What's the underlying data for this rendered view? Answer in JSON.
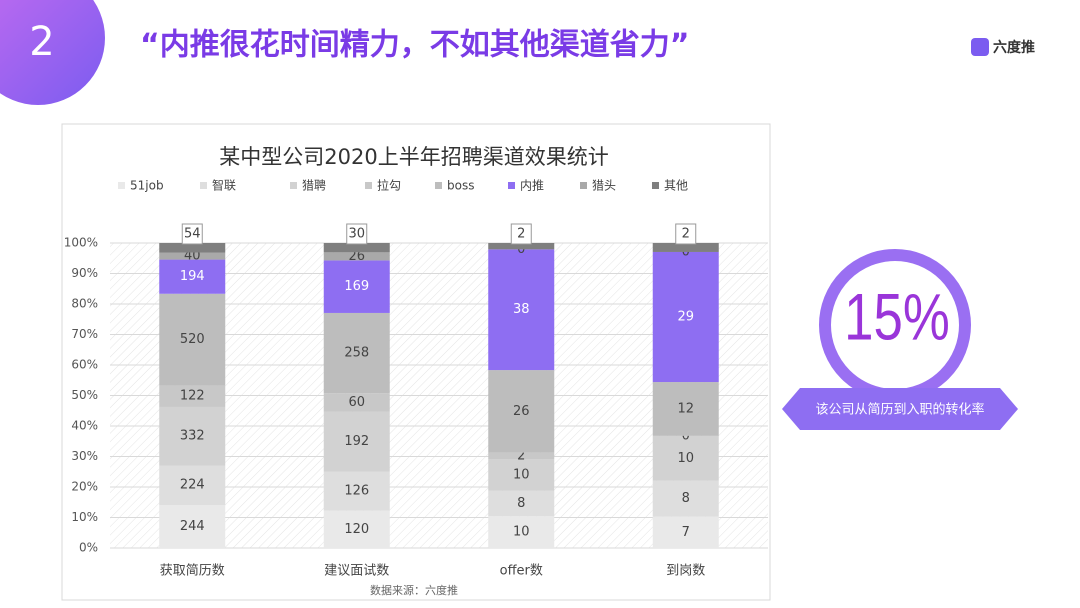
{
  "slide": {
    "badge": "2",
    "heading": "“内推很花时间精力，不如其他渠道省力”",
    "logo": "六度推",
    "source": "数据来源：六度推"
  },
  "callout": {
    "label": "15%",
    "caption": "该公司从简历到入职的转化率"
  },
  "chart_data": {
    "type": "stacked_percent_bar",
    "title": "某中型公司2020上半年招聘渠道效果统计",
    "categories": [
      "获取简历数",
      "建议面试数",
      "offer数",
      "到岗数"
    ],
    "series": [
      {
        "name": "51job",
        "color": "#e9e9e9",
        "values": [
          244,
          120,
          10,
          7
        ]
      },
      {
        "name": "智联",
        "color": "#dedede",
        "values": [
          224,
          126,
          8,
          8
        ]
      },
      {
        "name": "猎聘",
        "color": "#d2d2d2",
        "values": [
          332,
          192,
          10,
          10
        ]
      },
      {
        "name": "拉勾",
        "color": "#c8c8c8",
        "values": [
          122,
          60,
          2,
          0
        ]
      },
      {
        "name": "boss",
        "color": "#bdbdbd",
        "values": [
          520,
          258,
          26,
          12
        ]
      },
      {
        "name": "内推",
        "color": "#8e6ef2",
        "values": [
          194,
          169,
          38,
          29
        ]
      },
      {
        "name": "猎头",
        "color": "#a9a9a9",
        "values": [
          40,
          26,
          0,
          0
        ]
      },
      {
        "name": "其他",
        "color": "#7f7f7f",
        "values": [
          54,
          30,
          2,
          2
        ]
      }
    ],
    "ylim": [
      0,
      100
    ],
    "yticks": [
      {
        "value": 0,
        "label": "0%"
      },
      {
        "value": 10,
        "label": "10%"
      },
      {
        "value": 20,
        "label": "20%"
      },
      {
        "value": 30,
        "label": "30%"
      },
      {
        "value": 40,
        "label": "40%"
      },
      {
        "value": 50,
        "label": "50%"
      },
      {
        "value": 60,
        "label": "60%"
      },
      {
        "value": 70,
        "label": "70%"
      },
      {
        "value": 80,
        "label": "80%"
      },
      {
        "value": 90,
        "label": "90%"
      },
      {
        "value": 100,
        "label": "100%"
      }
    ],
    "grid": true,
    "legend": "top"
  }
}
